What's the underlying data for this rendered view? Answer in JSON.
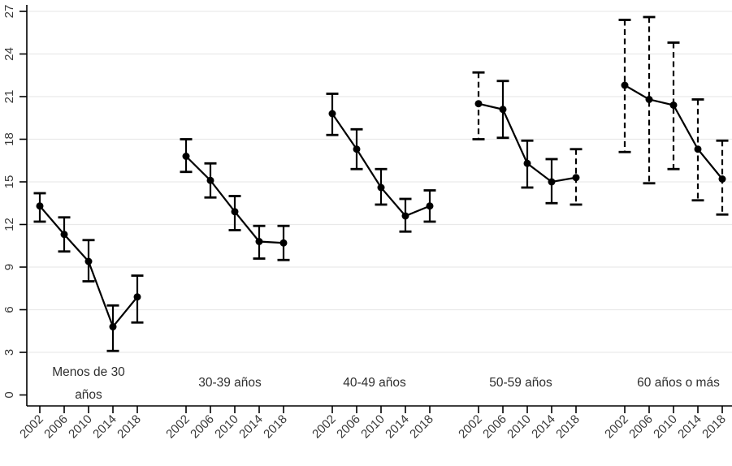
{
  "chart_data": {
    "type": "line",
    "title": "",
    "xlabel": "",
    "ylabel": "",
    "ylim": [
      0,
      27
    ],
    "yticks": [
      0,
      3,
      6,
      9,
      12,
      15,
      18,
      21,
      24,
      27
    ],
    "grid": "horizontal",
    "legend": "none",
    "categories": [
      "2002",
      "2006",
      "2010",
      "2014",
      "2018"
    ],
    "marker": "filled-circle",
    "error_bars": "capped confidence intervals, some solid some dashed",
    "groups": [
      {
        "label": "Menos de 30 años",
        "label_lines": [
          "Menos de 30",
          "años"
        ],
        "points": [
          {
            "year": "2002",
            "est": 13.3,
            "lo": 12.2,
            "hi": 14.2,
            "ci": "solid"
          },
          {
            "year": "2006",
            "est": 11.3,
            "lo": 10.1,
            "hi": 12.5,
            "ci": "solid"
          },
          {
            "year": "2010",
            "est": 9.4,
            "lo": 8.0,
            "hi": 10.9,
            "ci": "solid"
          },
          {
            "year": "2014",
            "est": 4.8,
            "lo": 3.1,
            "hi": 6.3,
            "ci": "solid"
          },
          {
            "year": "2018",
            "est": 6.9,
            "lo": 5.1,
            "hi": 8.4,
            "ci": "solid"
          }
        ]
      },
      {
        "label": "30-39 años",
        "label_lines": [
          "30-39 años"
        ],
        "points": [
          {
            "year": "2002",
            "est": 16.8,
            "lo": 15.7,
            "hi": 18.0,
            "ci": "solid"
          },
          {
            "year": "2006",
            "est": 15.1,
            "lo": 13.9,
            "hi": 16.3,
            "ci": "solid"
          },
          {
            "year": "2010",
            "est": 12.9,
            "lo": 11.6,
            "hi": 14.0,
            "ci": "solid"
          },
          {
            "year": "2014",
            "est": 10.8,
            "lo": 9.6,
            "hi": 11.9,
            "ci": "solid"
          },
          {
            "year": "2018",
            "est": 10.7,
            "lo": 9.5,
            "hi": 11.9,
            "ci": "solid"
          }
        ]
      },
      {
        "label": "40-49 años",
        "label_lines": [
          "40-49 años"
        ],
        "points": [
          {
            "year": "2002",
            "est": 19.8,
            "lo": 18.3,
            "hi": 21.2,
            "ci": "solid"
          },
          {
            "year": "2006",
            "est": 17.3,
            "lo": 15.9,
            "hi": 18.7,
            "ci": "solid"
          },
          {
            "year": "2010",
            "est": 14.6,
            "lo": 13.4,
            "hi": 15.9,
            "ci": "solid"
          },
          {
            "year": "2014",
            "est": 12.6,
            "lo": 11.5,
            "hi": 13.8,
            "ci": "solid"
          },
          {
            "year": "2018",
            "est": 13.3,
            "lo": 12.2,
            "hi": 14.4,
            "ci": "solid"
          }
        ]
      },
      {
        "label": "50-59 años",
        "label_lines": [
          "50-59 años"
        ],
        "points": [
          {
            "year": "2002",
            "est": 20.5,
            "lo": 18.0,
            "hi": 22.7,
            "ci": "dashed"
          },
          {
            "year": "2006",
            "est": 20.1,
            "lo": 18.1,
            "hi": 22.1,
            "ci": "solid"
          },
          {
            "year": "2010",
            "est": 16.3,
            "lo": 14.6,
            "hi": 17.9,
            "ci": "solid"
          },
          {
            "year": "2014",
            "est": 15.0,
            "lo": 13.5,
            "hi": 16.6,
            "ci": "solid"
          },
          {
            "year": "2018",
            "est": 15.3,
            "lo": 13.4,
            "hi": 17.3,
            "ci": "dashed"
          }
        ]
      },
      {
        "label": "60 años o más",
        "label_lines": [
          "60 años o más"
        ],
        "points": [
          {
            "year": "2002",
            "est": 21.8,
            "lo": 17.1,
            "hi": 26.4,
            "ci": "dashed"
          },
          {
            "year": "2006",
            "est": 20.8,
            "lo": 14.9,
            "hi": 26.6,
            "ci": "dashed"
          },
          {
            "year": "2010",
            "est": 20.4,
            "lo": 15.9,
            "hi": 24.8,
            "ci": "dashed"
          },
          {
            "year": "2014",
            "est": 17.3,
            "lo": 13.7,
            "hi": 20.8,
            "ci": "dashed"
          },
          {
            "year": "2018",
            "est": 15.2,
            "lo": 12.7,
            "hi": 17.9,
            "ci": "dashed"
          }
        ]
      }
    ],
    "colors": {
      "ink": "#000000",
      "grid": "#e9e9e9",
      "tick_label": "#3a3a3a",
      "group_label": "#2f2f2f",
      "background": "#ffffff"
    }
  }
}
